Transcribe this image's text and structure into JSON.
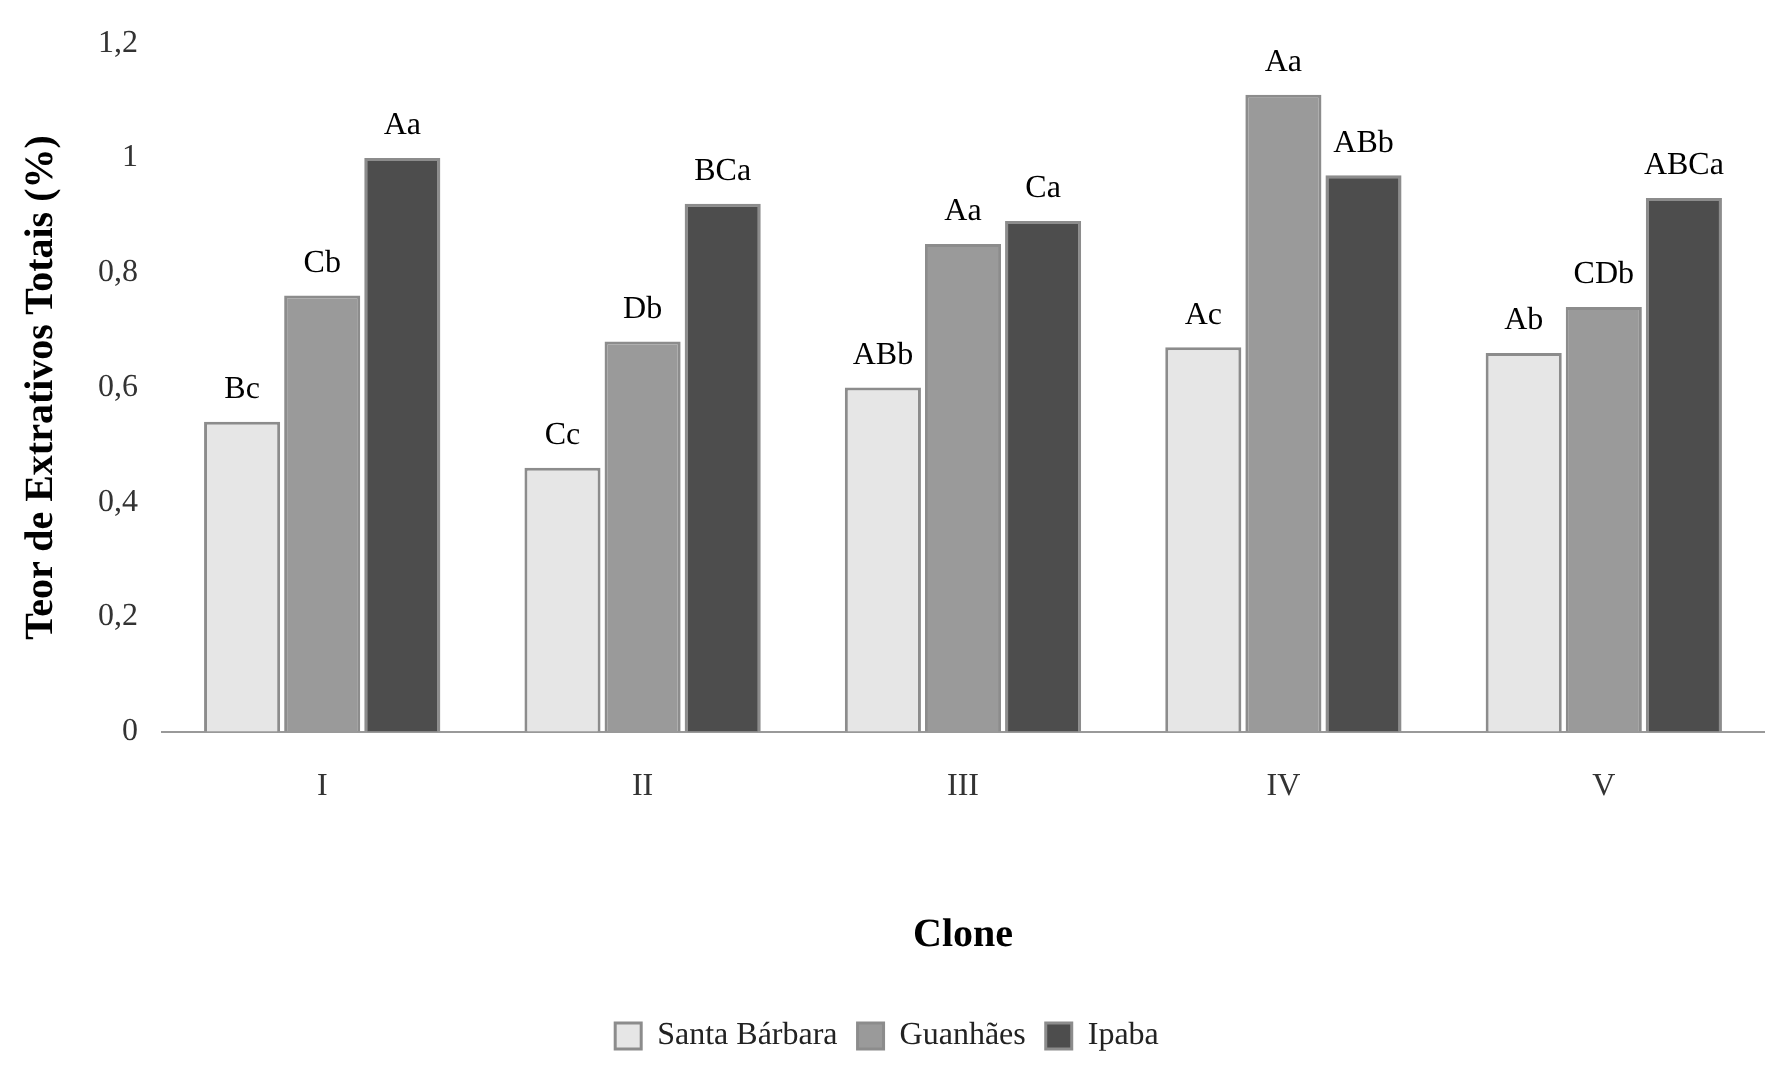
{
  "chart_data": {
    "type": "bar",
    "xlabel": "Clone",
    "ylabel": "Teor de Extrativos Totais (%)",
    "categories": [
      "I",
      "II",
      "III",
      "IV",
      "V"
    ],
    "series": [
      {
        "name": "Santa Bárbara",
        "color": "#e6e6e6",
        "values": [
          0.54,
          0.46,
          0.6,
          0.67,
          0.66
        ],
        "value_labels": [
          "Bc",
          "Cc",
          "ABb",
          "Ac",
          "Ab"
        ]
      },
      {
        "name": "Guanhães",
        "color": "#9a9a9a",
        "values": [
          0.76,
          0.68,
          0.85,
          1.11,
          0.74
        ],
        "value_labels": [
          "Cb",
          "Db",
          "Aa",
          "Aa",
          "CDb"
        ]
      },
      {
        "name": "Ipaba",
        "color": "#4d4d4d",
        "values": [
          1.0,
          0.92,
          0.89,
          0.97,
          0.93
        ],
        "value_labels": [
          "Aa",
          "BCa",
          "Ca",
          "ABb",
          "ABCa"
        ]
      }
    ],
    "ylim": [
      0,
      1.2
    ],
    "yticks": [
      0,
      {
        "value": 0.2,
        "label": "0,2"
      },
      {
        "value": 0.4,
        "label": "0,4"
      },
      {
        "value": 0.6,
        "label": "0,6"
      },
      {
        "value": 0.8,
        "label": "0,8"
      },
      1,
      {
        "value": 1.2,
        "label": "1,2"
      }
    ],
    "grid": false,
    "legend": "bottom"
  }
}
